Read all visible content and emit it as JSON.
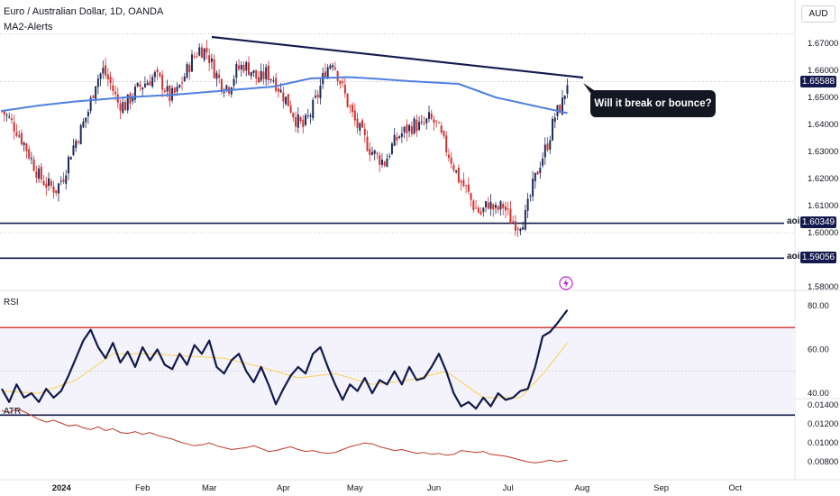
{
  "header": {
    "title_line": "Euro / Australian Dollar, 1D, OANDA",
    "indicator": "MA2-Alerts",
    "currency": "AUD"
  },
  "annotation": {
    "callout": "Will it break or bounce?"
  },
  "colors": {
    "bull": "#26a69a",
    "bear": "#ef5350",
    "candle_up": "#1e2a5a",
    "candle_down": "#d32f2f",
    "ma": "#4f7fe0",
    "trendline": "#131a4d",
    "aoi": "#131a4d",
    "rsi_line": "#131a4d",
    "rsi_ma": "#f5d76e",
    "rsi_upper": "#d32f2f",
    "atr_line": "#c0392b"
  },
  "chart_data": [
    {
      "type": "candlestick",
      "pane": "price",
      "title": "Euro / Australian Dollar, 1D, OANDA",
      "y_ticks": [
        "1.67000",
        "1.66000",
        "1.65000",
        "1.64000",
        "1.63000",
        "1.62000",
        "1.61000",
        "1.60000",
        "1.58000"
      ],
      "x_ticks": [
        "2024",
        "Feb",
        "Mar",
        "Apr",
        "May",
        "Jun",
        "Jul",
        "Aug",
        "Sep",
        "Oct"
      ],
      "ylim": [
        1.579,
        1.6755
      ],
      "last_price": "1.65588",
      "aoi_levels": [
        {
          "label": "aoi",
          "value": "1.60349"
        },
        {
          "label": "aoi",
          "value": "1.59056"
        }
      ],
      "trendline": {
        "from": [
          "Mar",
          1.6735
        ],
        "to": [
          "late Jul",
          1.6585
        ]
      },
      "moving_average": [
        [
          0,
          1.645
        ],
        [
          15,
          1.647
        ],
        [
          30,
          1.6485
        ],
        [
          50,
          1.65
        ],
        [
          70,
          1.651
        ],
        [
          90,
          1.6525
        ],
        [
          110,
          1.654
        ],
        [
          125,
          1.657
        ],
        [
          140,
          1.6575
        ],
        [
          150,
          1.657
        ],
        [
          165,
          1.656
        ],
        [
          185,
          1.655
        ],
        [
          200,
          1.65
        ],
        [
          215,
          1.647
        ],
        [
          225,
          1.645
        ],
        [
          230,
          1.644
        ]
      ],
      "close_path": [
        [
          0,
          1.645
        ],
        [
          3,
          1.642
        ],
        [
          6,
          1.638
        ],
        [
          9,
          1.633
        ],
        [
          12,
          1.627
        ],
        [
          15,
          1.621
        ],
        [
          18,
          1.618
        ],
        [
          22,
          1.616
        ],
        [
          25,
          1.621
        ],
        [
          28,
          1.63
        ],
        [
          32,
          1.638
        ],
        [
          35,
          1.645
        ],
        [
          38,
          1.656
        ],
        [
          41,
          1.66
        ],
        [
          44,
          1.655
        ],
        [
          47,
          1.648
        ],
        [
          50,
          1.647
        ],
        [
          53,
          1.651
        ],
        [
          56,
          1.654
        ],
        [
          59,
          1.656
        ],
        [
          62,
          1.658
        ],
        [
          65,
          1.655
        ],
        [
          68,
          1.65
        ],
        [
          71,
          1.652
        ],
        [
          74,
          1.658
        ],
        [
          77,
          1.664
        ],
        [
          80,
          1.668
        ],
        [
          83,
          1.667
        ],
        [
          86,
          1.66
        ],
        [
          89,
          1.655
        ],
        [
          92,
          1.654
        ],
        [
          95,
          1.66
        ],
        [
          98,
          1.662
        ],
        [
          101,
          1.66
        ],
        [
          104,
          1.656
        ],
        [
          107,
          1.659
        ],
        [
          110,
          1.657
        ],
        [
          113,
          1.652
        ],
        [
          116,
          1.648
        ],
        [
          119,
          1.642
        ],
        [
          122,
          1.639
        ],
        [
          125,
          1.644
        ],
        [
          128,
          1.651
        ],
        [
          131,
          1.66
        ],
        [
          134,
          1.664
        ],
        [
          137,
          1.656
        ],
        [
          140,
          1.648
        ],
        [
          143,
          1.641
        ],
        [
          146,
          1.636
        ],
        [
          149,
          1.631
        ],
        [
          152,
          1.628
        ],
        [
          155,
          1.626
        ],
        [
          158,
          1.632
        ],
        [
          161,
          1.636
        ],
        [
          164,
          1.638
        ],
        [
          167,
          1.64
        ],
        [
          170,
          1.639
        ],
        [
          173,
          1.642
        ],
        [
          176,
          1.64
        ],
        [
          179,
          1.633
        ],
        [
          182,
          1.627
        ],
        [
          185,
          1.62
        ],
        [
          188,
          1.616
        ],
        [
          191,
          1.61
        ],
        [
          194,
          1.607
        ],
        [
          197,
          1.611
        ],
        [
          200,
          1.608
        ],
        [
          203,
          1.61
        ],
        [
          206,
          1.605
        ],
        [
          209,
          1.603
        ],
        [
          212,
          1.606
        ],
        [
          215,
          1.617
        ],
        [
          218,
          1.626
        ],
        [
          221,
          1.633
        ],
        [
          224,
          1.643
        ],
        [
          227,
          1.648
        ],
        [
          229,
          1.6559
        ]
      ]
    },
    {
      "type": "line",
      "pane": "rsi",
      "label": "RSI",
      "y_ticks": [
        "80.00",
        "60.00",
        "40.00"
      ],
      "ylim": [
        27,
        87
      ],
      "bands": [
        70,
        30
      ],
      "series": [
        {
          "name": "RSI",
          "values": [
            [
              0,
              42
            ],
            [
              3,
              36
            ],
            [
              6,
              44
            ],
            [
              9,
              38
            ],
            [
              12,
              40
            ],
            [
              15,
              36
            ],
            [
              18,
              42
            ],
            [
              21,
              38
            ],
            [
              24,
              41
            ],
            [
              27,
              48
            ],
            [
              30,
              56
            ],
            [
              33,
              64
            ],
            [
              36,
              69
            ],
            [
              39,
              61
            ],
            [
              42,
              56
            ],
            [
              45,
              63
            ],
            [
              48,
              54
            ],
            [
              51,
              59
            ],
            [
              54,
              52
            ],
            [
              57,
              61
            ],
            [
              60,
              55
            ],
            [
              63,
              60
            ],
            [
              66,
              53
            ],
            [
              69,
              51
            ],
            [
              72,
              58
            ],
            [
              75,
              53
            ],
            [
              78,
              62
            ],
            [
              81,
              58
            ],
            [
              84,
              64
            ],
            [
              87,
              52
            ],
            [
              90,
              49
            ],
            [
              93,
              55
            ],
            [
              96,
              58
            ],
            [
              99,
              50
            ],
            [
              102,
              45
            ],
            [
              105,
              52
            ],
            [
              108,
              44
            ],
            [
              111,
              35
            ],
            [
              114,
              42
            ],
            [
              117,
              48
            ],
            [
              120,
              52
            ],
            [
              123,
              49
            ],
            [
              126,
              58
            ],
            [
              129,
              61
            ],
            [
              132,
              52
            ],
            [
              135,
              44
            ],
            [
              138,
              37
            ],
            [
              141,
              44
            ],
            [
              144,
              41
            ],
            [
              147,
              47
            ],
            [
              150,
              40
            ],
            [
              153,
              46
            ],
            [
              156,
              44
            ],
            [
              159,
              50
            ],
            [
              162,
              44
            ],
            [
              165,
              52
            ],
            [
              168,
              46
            ],
            [
              171,
              47
            ],
            [
              174,
              52
            ],
            [
              177,
              58
            ],
            [
              180,
              50
            ],
            [
              183,
              40
            ],
            [
              186,
              34
            ],
            [
              189,
              36
            ],
            [
              192,
              33
            ],
            [
              195,
              38
            ],
            [
              198,
              34
            ],
            [
              201,
              40
            ],
            [
              204,
              37
            ],
            [
              207,
              38
            ],
            [
              210,
              41
            ],
            [
              213,
              42
            ],
            [
              216,
              52
            ],
            [
              219,
              66
            ],
            [
              222,
              68
            ],
            [
              225,
              72
            ],
            [
              229,
              78
            ]
          ]
        },
        {
          "name": "RSI-MA",
          "values": [
            [
              0,
              41
            ],
            [
              15,
              40
            ],
            [
              30,
              46
            ],
            [
              45,
              58
            ],
            [
              60,
              58
            ],
            [
              75,
              57
            ],
            [
              90,
              56
            ],
            [
              105,
              52
            ],
            [
              120,
              47
            ],
            [
              135,
              49
            ],
            [
              150,
              44
            ],
            [
              165,
              46
            ],
            [
              180,
              50
            ],
            [
              195,
              38
            ],
            [
              210,
              38
            ],
            [
              220,
              50
            ],
            [
              229,
              63
            ]
          ]
        }
      ]
    },
    {
      "type": "line",
      "pane": "atr",
      "label": "ATR",
      "y_ticks": [
        "0.01400",
        "0.01200",
        "0.01000",
        "0.00800"
      ],
      "ylim": [
        0.0074,
        0.0143
      ],
      "series": [
        {
          "name": "ATR",
          "values": [
            [
              0,
              0.0134
            ],
            [
              3,
              0.0132
            ],
            [
              6,
              0.0136
            ],
            [
              9,
              0.0133
            ],
            [
              12,
              0.0129
            ],
            [
              15,
              0.0125
            ],
            [
              18,
              0.0122
            ],
            [
              21,
              0.0124
            ],
            [
              24,
              0.0121
            ],
            [
              27,
              0.0118
            ],
            [
              30,
              0.0119
            ],
            [
              33,
              0.0116
            ],
            [
              36,
              0.0114
            ],
            [
              39,
              0.0117
            ],
            [
              42,
              0.0113
            ],
            [
              45,
              0.0115
            ],
            [
              48,
              0.0111
            ],
            [
              51,
              0.011
            ],
            [
              54,
              0.0112
            ],
            [
              57,
              0.0109
            ],
            [
              60,
              0.0111
            ],
            [
              63,
              0.0108
            ],
            [
              66,
              0.0106
            ],
            [
              69,
              0.0104
            ],
            [
              72,
              0.0101
            ],
            [
              75,
              0.0099
            ],
            [
              78,
              0.0097
            ],
            [
              81,
              0.0098
            ],
            [
              84,
              0.01
            ],
            [
              87,
              0.0097
            ],
            [
              90,
              0.0095
            ],
            [
              93,
              0.0093
            ],
            [
              96,
              0.0094
            ],
            [
              99,
              0.0095
            ],
            [
              102,
              0.0097
            ],
            [
              105,
              0.0094
            ],
            [
              108,
              0.0091
            ],
            [
              111,
              0.0092
            ],
            [
              114,
              0.0094
            ],
            [
              117,
              0.0096
            ],
            [
              120,
              0.0093
            ],
            [
              123,
              0.0091
            ],
            [
              126,
              0.0092
            ],
            [
              129,
              0.009
            ],
            [
              132,
              0.0089
            ],
            [
              135,
              0.009
            ],
            [
              138,
              0.0093
            ],
            [
              141,
              0.0096
            ],
            [
              144,
              0.0098
            ],
            [
              147,
              0.01
            ],
            [
              150,
              0.0099
            ],
            [
              153,
              0.0096
            ],
            [
              156,
              0.0094
            ],
            [
              159,
              0.0092
            ],
            [
              162,
              0.0093
            ],
            [
              165,
              0.0091
            ],
            [
              168,
              0.0089
            ],
            [
              171,
              0.009
            ],
            [
              174,
              0.0088
            ],
            [
              177,
              0.0089
            ],
            [
              180,
              0.0087
            ],
            [
              183,
              0.0088
            ],
            [
              186,
              0.0092
            ],
            [
              189,
              0.0091
            ],
            [
              192,
              0.009
            ],
            [
              195,
              0.0091
            ],
            [
              198,
              0.0088
            ],
            [
              201,
              0.0087
            ],
            [
              204,
              0.0086
            ],
            [
              207,
              0.0084
            ],
            [
              210,
              0.0082
            ],
            [
              213,
              0.008
            ],
            [
              216,
              0.0079
            ],
            [
              219,
              0.008
            ],
            [
              222,
              0.0082
            ],
            [
              225,
              0.008
            ],
            [
              229,
              0.0082
            ]
          ]
        }
      ]
    }
  ]
}
